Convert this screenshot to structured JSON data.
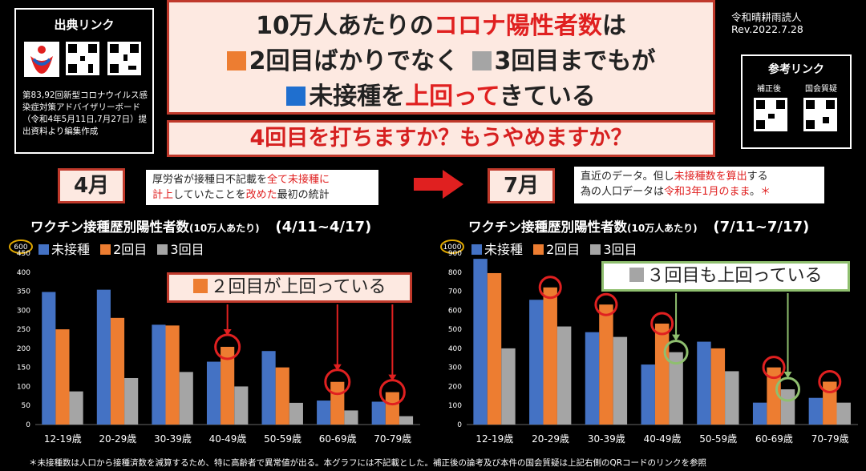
{
  "source": {
    "title": "出典リンク",
    "note": "第83,92回新型コロナウイルス感染症対策アドバイザリーボード（令和4年5月11日,7月27日）提出資料より編集作成"
  },
  "headline": {
    "line1_a": "10万人あたりの",
    "line1_b": "コロナ陽性者数",
    "line1_c": "は",
    "line2_a": "2回目ばかりでなく",
    "line2_b": "3回目までもが",
    "line3_a": "未接種を",
    "line3_b": "上回って",
    "line3_c": "きている",
    "question": "4回目を打ちますか？もうやめますか？"
  },
  "credit": {
    "author": "令和晴耕雨読人",
    "rev": "Rev.2022.7.28"
  },
  "reference": {
    "title": "参考リンク",
    "left_label": "補正後",
    "right_label": "国会質疑"
  },
  "april": {
    "month": "4月",
    "note_a": "厚労省が接種日不記載を",
    "note_b": "全て未接種に",
    "note_c": "計上",
    "note_d": "していたことを",
    "note_e": "改めた",
    "note_f": "最初の統計"
  },
  "july": {
    "month": "7月",
    "note_a": "直近のデータ。但し",
    "note_b": "未接種数を算出",
    "note_c": "する",
    "note_d": "為の人口データは",
    "note_e": "令和3年1月のまま",
    "note_f": "。",
    "note_star": "＊"
  },
  "colors": {
    "unvax": "#4472c4",
    "dose2": "#ed7d31",
    "dose3": "#a5a5a5",
    "accent": "#e02020",
    "green": "#8fbf6f"
  },
  "chart_data": [
    {
      "type": "bar",
      "title": "ワクチン接種歴別陽性者数",
      "title_sub": "(10万人あたり)",
      "period": "(4/11~4/17)",
      "ymax_label": "600",
      "categories": [
        "12-19歳",
        "20-29歳",
        "30-39歳",
        "40-49歳",
        "50-59歳",
        "60-69歳",
        "70-79歳"
      ],
      "ylim": [
        0,
        450
      ],
      "yticks": [
        0,
        50,
        100,
        150,
        200,
        250,
        300,
        350,
        400,
        450
      ],
      "series": [
        {
          "name": "未接種",
          "values": [
            348,
            354,
            262,
            165,
            193,
            63,
            60
          ]
        },
        {
          "name": "2回目",
          "values": [
            250,
            280,
            260,
            204,
            150,
            112,
            85
          ]
        },
        {
          "name": "3回目",
          "values": [
            87,
            122,
            138,
            100,
            57,
            37,
            22
          ]
        }
      ],
      "callout": "２回目が上回っている",
      "grid": false,
      "legend": "top-left"
    },
    {
      "type": "bar",
      "title": "ワクチン接種歴別陽性者数",
      "title_sub": "(10万人あたり)",
      "period": "(7/11~7/17)",
      "ymax_label": "1000",
      "categories": [
        "12-19歳",
        "20-29歳",
        "30-39歳",
        "40-49歳",
        "50-59歳",
        "60-69歳",
        "70-79歳"
      ],
      "ylim": [
        0,
        900
      ],
      "yticks": [
        0,
        100,
        200,
        300,
        400,
        500,
        600,
        700,
        800,
        900
      ],
      "series": [
        {
          "name": "未接種",
          "values": [
            870,
            655,
            485,
            315,
            435,
            115,
            140
          ]
        },
        {
          "name": "2回目",
          "values": [
            795,
            720,
            630,
            530,
            400,
            300,
            225
          ]
        },
        {
          "name": "3回目",
          "values": [
            400,
            515,
            460,
            380,
            280,
            185,
            115
          ]
        }
      ],
      "callout": "３回目も上回っている",
      "grid": false,
      "legend": "top-left"
    }
  ],
  "footnote": "＊未接種数は人口から接種済数を減算するため、特に高齢者で異常値が出る。本グラフには不記載とした。補正後の論考及び本件の国会質疑は上記右側のQRコードのリンクを参照"
}
